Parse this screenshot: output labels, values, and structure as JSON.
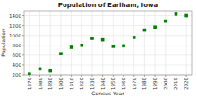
{
  "chart_data": {
    "type": "scatter",
    "title": "Population of Earlham, Iowa",
    "x_label": "Census Year",
    "y_label": "Population",
    "x": [
      1870,
      1880,
      1890,
      1900,
      1910,
      1920,
      1930,
      1940,
      1950,
      1960,
      1970,
      1980,
      1990,
      2000,
      2010,
      2020
    ],
    "values": [
      215,
      320,
      280,
      630,
      760,
      800,
      940,
      910,
      780,
      790,
      960,
      1110,
      1170,
      1290,
      1430,
      1400
    ],
    "color": "#008000",
    "marker": "square",
    "xlim": [
      1865,
      2025
    ],
    "xticks": [
      1870,
      1880,
      1890,
      1900,
      1910,
      1920,
      1930,
      1940,
      1950,
      1960,
      1970,
      1980,
      1990,
      2000,
      2010,
      2020
    ],
    "ylim": [
      200,
      1500
    ],
    "yticks": [
      200,
      400,
      600,
      800,
      1000,
      1200,
      1400
    ],
    "grid": true
  }
}
